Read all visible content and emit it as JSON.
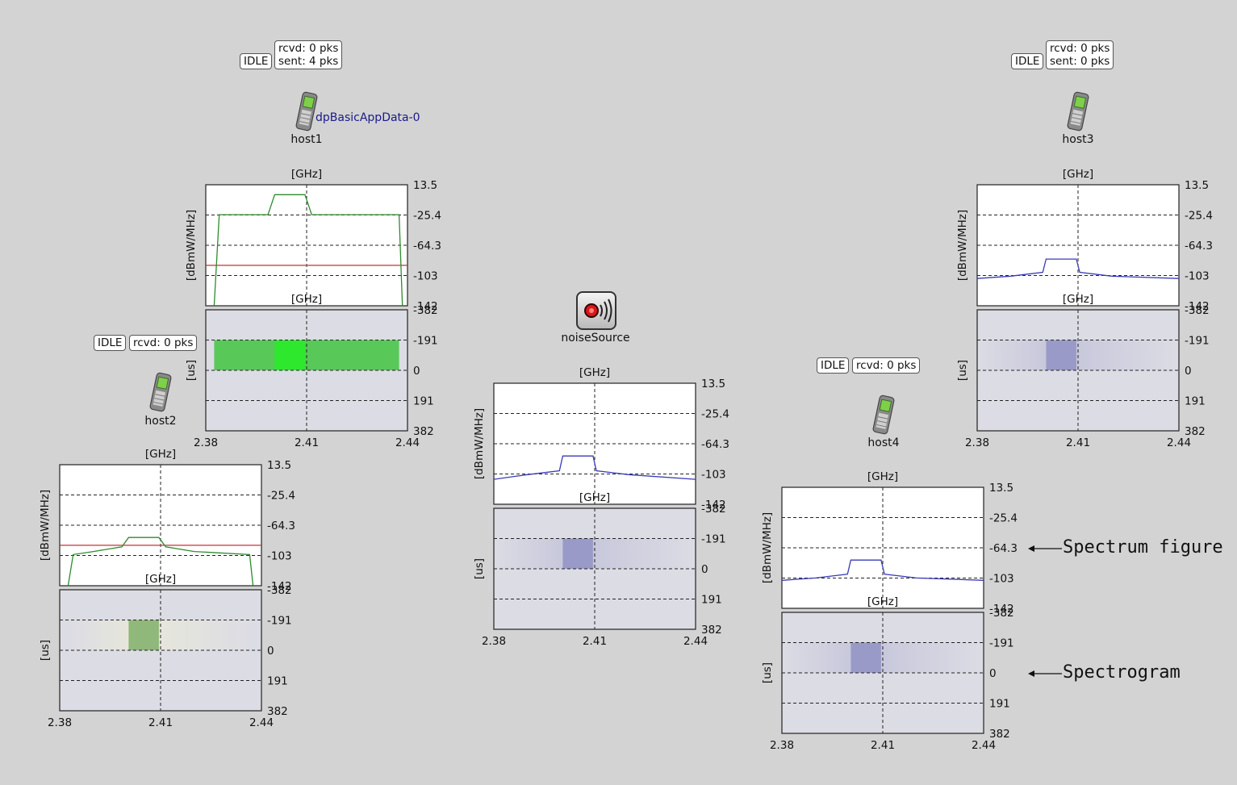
{
  "nodes": {
    "host1": {
      "label": "host1",
      "status": "IDLE",
      "counters": "rcvd: 0 pks\nsent: 4 pks",
      "app": "dpBasicAppData-0"
    },
    "host2": {
      "label": "host2",
      "status": "IDLE",
      "counters": "rcvd: 0 pks"
    },
    "host3": {
      "label": "host3",
      "status": "IDLE",
      "counters": "rcvd: 0 pks\nsent: 0 pks"
    },
    "host4": {
      "label": "host4",
      "status": "IDLE",
      "counters": "rcvd: 0 pks"
    },
    "noise": {
      "label": "noiseSource"
    }
  },
  "annotations": {
    "spectrum": "Spectrum figure",
    "spectrogram": "Spectrogram"
  },
  "colors": {
    "background": "#d3d3d3",
    "green_signal": "#2e8b2e",
    "blue_signal": "#3a3ab8",
    "red_threshold": "#c83030"
  },
  "chart_data": [
    {
      "id": "host1",
      "type": "line",
      "color": "green",
      "unit_x": "[GHz]",
      "unit_y": "[dBmW/MHz]",
      "unit_t": "[us]",
      "x_ticks": [
        "2.38",
        "2.41",
        "2.44"
      ],
      "y_ticks": [
        "13.5",
        "-25.4",
        "-64.3",
        "-103",
        "-142"
      ],
      "t_ticks": [
        "-382",
        "-191",
        "0",
        "191",
        "382"
      ],
      "xlim": [
        2.38,
        2.44
      ],
      "ylim": [
        -142,
        13.5
      ],
      "x": [
        2.3825,
        2.384,
        2.39,
        2.3985,
        2.4005,
        2.4095,
        2.4115,
        2.42,
        2.4375,
        2.4385
      ],
      "y": [
        -142,
        -25,
        -25,
        -25,
        0.8,
        0.8,
        -25,
        -25,
        -25,
        -142
      ],
      "threshold": -90,
      "spectrogram": {
        "x_range": [
          2.3825,
          2.4375
        ],
        "t_range": [
          -191,
          0
        ],
        "core": [
          2.4005,
          2.4095
        ],
        "core_color": "#2ee82e",
        "side_color": "#58c858",
        "fade": false
      }
    },
    {
      "id": "host2",
      "type": "line",
      "color": "green",
      "unit_x": "[GHz]",
      "unit_y": "[dBmW/MHz]",
      "unit_t": "[us]",
      "x_ticks": [
        "2.38",
        "2.41",
        "2.44"
      ],
      "y_ticks": [
        "13.5",
        "-25.4",
        "-64.3",
        "-103",
        "-142"
      ],
      "t_ticks": [
        "-382",
        "-191",
        "0",
        "191",
        "382"
      ],
      "xlim": [
        2.38,
        2.44
      ],
      "ylim": [
        -142,
        13.5
      ],
      "x": [
        2.3825,
        2.384,
        2.39,
        2.3985,
        2.4005,
        2.4095,
        2.4115,
        2.42,
        2.4365,
        2.4375
      ],
      "y": [
        -142,
        -102,
        -98,
        -92,
        -80,
        -80,
        -92,
        -98,
        -102,
        -142
      ],
      "threshold": -90,
      "spectrogram": {
        "x_range": [
          2.3825,
          2.4375
        ],
        "t_range": [
          -191,
          0
        ],
        "core": [
          2.4005,
          2.4095
        ],
        "core_color": "#8fb87a",
        "side_color": "#e6e6dc",
        "fade": true
      }
    },
    {
      "id": "host3",
      "type": "line",
      "color": "blue",
      "unit_x": "[GHz]",
      "unit_y": "[dBmW/MHz]",
      "unit_t": "[us]",
      "x_ticks": [
        "2.38",
        "2.41",
        "2.44"
      ],
      "y_ticks": [
        "13.5",
        "-25.4",
        "-64.3",
        "-103",
        "-142"
      ],
      "t_ticks": [
        "-382",
        "-191",
        "0",
        "191",
        "382"
      ],
      "xlim": [
        2.38,
        2.44
      ],
      "ylim": [
        -142,
        13.5
      ],
      "x": [
        2.38,
        2.39,
        2.3995,
        2.4005,
        2.4095,
        2.4105,
        2.42,
        2.44
      ],
      "y": [
        -107,
        -104,
        -99,
        -82,
        -82,
        -99,
        -104,
        -107
      ],
      "threshold": null,
      "spectrogram": {
        "x_range": [
          2.38,
          2.44
        ],
        "t_range": [
          -191,
          0
        ],
        "core": [
          2.4005,
          2.4095
        ],
        "core_color": "#9a9ac8",
        "side_color": "#c8c8dc",
        "fade": true
      }
    },
    {
      "id": "noise",
      "type": "line",
      "color": "blue",
      "unit_x": "[GHz]",
      "unit_y": "[dBmW/MHz]",
      "unit_t": "[us]",
      "x_ticks": [
        "2.38",
        "2.41",
        "2.44"
      ],
      "y_ticks": [
        "13.5",
        "-25.4",
        "-64.3",
        "-103",
        "-142"
      ],
      "t_ticks": [
        "-382",
        "-191",
        "0",
        "191",
        "382"
      ],
      "xlim": [
        2.38,
        2.44
      ],
      "ylim": [
        -142,
        13.5
      ],
      "x": [
        2.38,
        2.39,
        2.3995,
        2.4005,
        2.4095,
        2.4105,
        2.42,
        2.44
      ],
      "y": [
        -110,
        -104,
        -99,
        -80,
        -80,
        -99,
        -104,
        -110
      ],
      "threshold": null,
      "spectrogram": {
        "x_range": [
          2.38,
          2.44
        ],
        "t_range": [
          -191,
          0
        ],
        "core": [
          2.4005,
          2.4095
        ],
        "core_color": "#9a9ac8",
        "side_color": "#c8c8dc",
        "fade": true
      }
    },
    {
      "id": "host4",
      "type": "line",
      "color": "blue",
      "unit_x": "[GHz]",
      "unit_y": "[dBmW/MHz]",
      "unit_t": "[us]",
      "x_ticks": [
        "2.38",
        "2.41",
        "2.44"
      ],
      "y_ticks": [
        "13.5",
        "-25.4",
        "-64.3",
        "-103",
        "-142"
      ],
      "t_ticks": [
        "-382",
        "-191",
        "0",
        "191",
        "382"
      ],
      "xlim": [
        2.38,
        2.44
      ],
      "ylim": [
        -142,
        13.5
      ],
      "x": [
        2.38,
        2.39,
        2.3995,
        2.4005,
        2.4095,
        2.4105,
        2.42,
        2.44
      ],
      "y": [
        -106,
        -103,
        -98,
        -80,
        -80,
        -98,
        -103,
        -106
      ],
      "threshold": null,
      "spectrogram": {
        "x_range": [
          2.38,
          2.44
        ],
        "t_range": [
          -191,
          0
        ],
        "core": [
          2.4005,
          2.4095
        ],
        "core_color": "#9a9ac8",
        "side_color": "#c8c8dc",
        "fade": true
      }
    }
  ]
}
